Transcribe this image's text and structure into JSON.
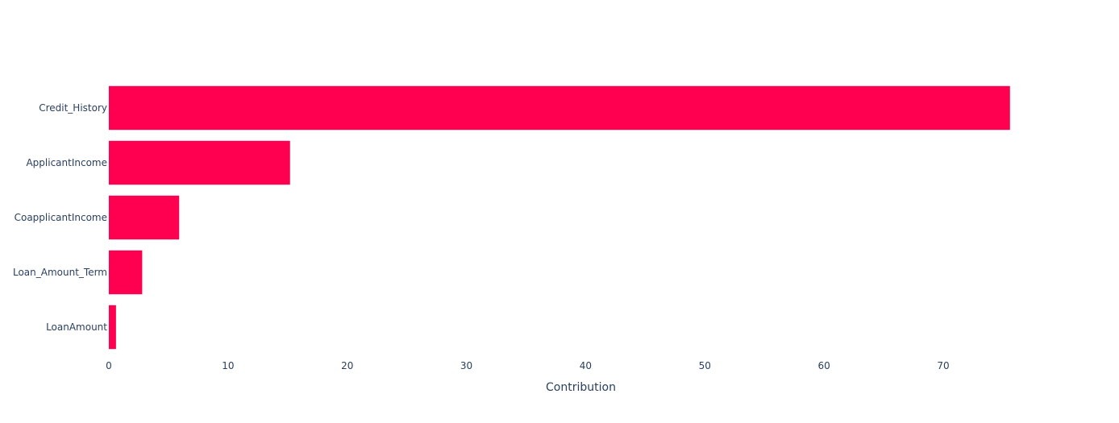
{
  "chart_data": {
    "type": "bar",
    "orientation": "horizontal",
    "categories": [
      "Credit_History",
      "ApplicantIncome",
      "CoapplicantIncome",
      "Loan_Amount_Term",
      "LoanAmount"
    ],
    "values": [
      75.6,
      15.2,
      5.9,
      2.8,
      0.6
    ],
    "title": "",
    "xlabel": "Contribution",
    "ylabel": "",
    "xlim": [
      0,
      79.2
    ],
    "xticks": [
      0,
      10,
      20,
      30,
      40,
      50,
      60,
      70
    ],
    "grid": false,
    "legend": "none",
    "bar_color": "#ff0051"
  }
}
